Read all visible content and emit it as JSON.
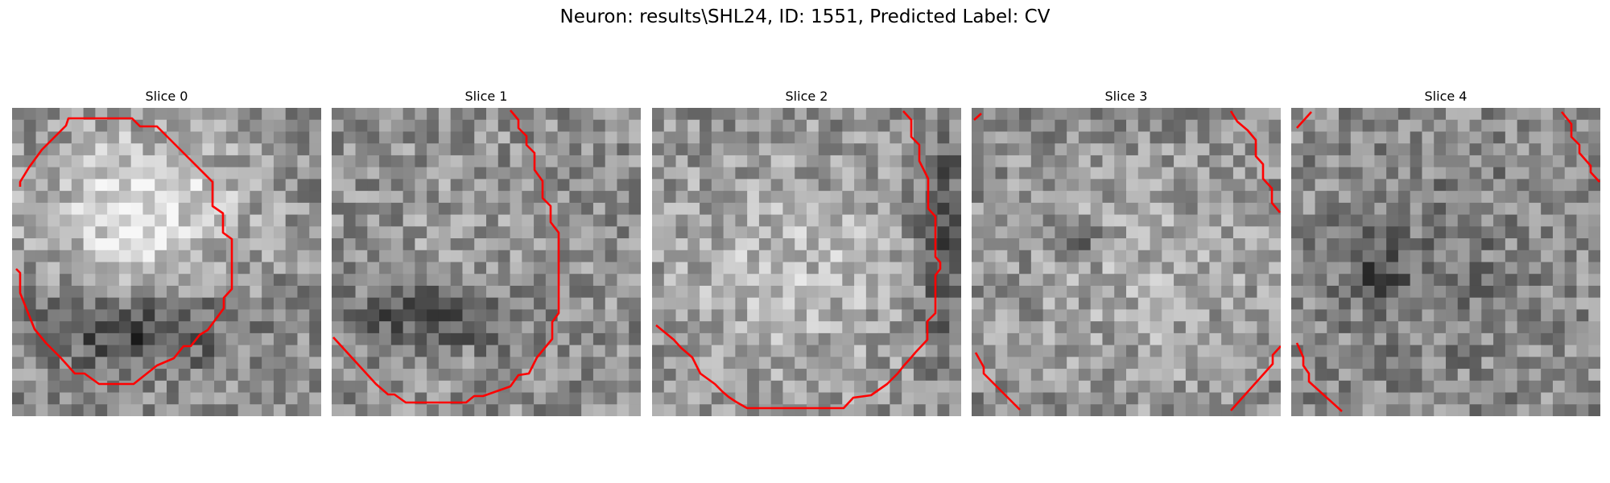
{
  "figure": {
    "title": "Neuron: results\\SHL24, ID: 1551, Predicted Label: CV"
  },
  "slices": [
    {
      "title": "Slice 0",
      "seed": 11,
      "blob": [
        0.42,
        0.33,
        0.42,
        0.33,
        0.55
      ],
      "dark": [
        0.4,
        0.72,
        0.35,
        0.16,
        -0.55
      ]
    },
    {
      "title": "Slice 1",
      "seed": 23,
      "blob": [
        0.52,
        0.48,
        0.5,
        0.45,
        0.1
      ],
      "dark": [
        0.35,
        0.68,
        0.35,
        0.12,
        -0.5
      ]
    },
    {
      "title": "Slice 2",
      "seed": 37,
      "blob": [
        0.45,
        0.55,
        0.55,
        0.5,
        0.3
      ],
      "dark": [
        0.95,
        0.45,
        0.12,
        0.45,
        -0.45
      ]
    },
    {
      "title": "Slice 3",
      "seed": 49,
      "blob": [
        0.55,
        0.55,
        0.55,
        0.5,
        0.2
      ],
      "dark": [
        0.33,
        0.44,
        0.1,
        0.08,
        -0.5
      ]
    },
    {
      "title": "Slice 4",
      "seed": 61,
      "blob": [
        0.45,
        0.5,
        0.4,
        0.4,
        -0.15
      ],
      "dark": [
        0.28,
        0.52,
        0.12,
        0.12,
        -0.35
      ]
    }
  ],
  "colors": {
    "contour": "#ff0000"
  }
}
